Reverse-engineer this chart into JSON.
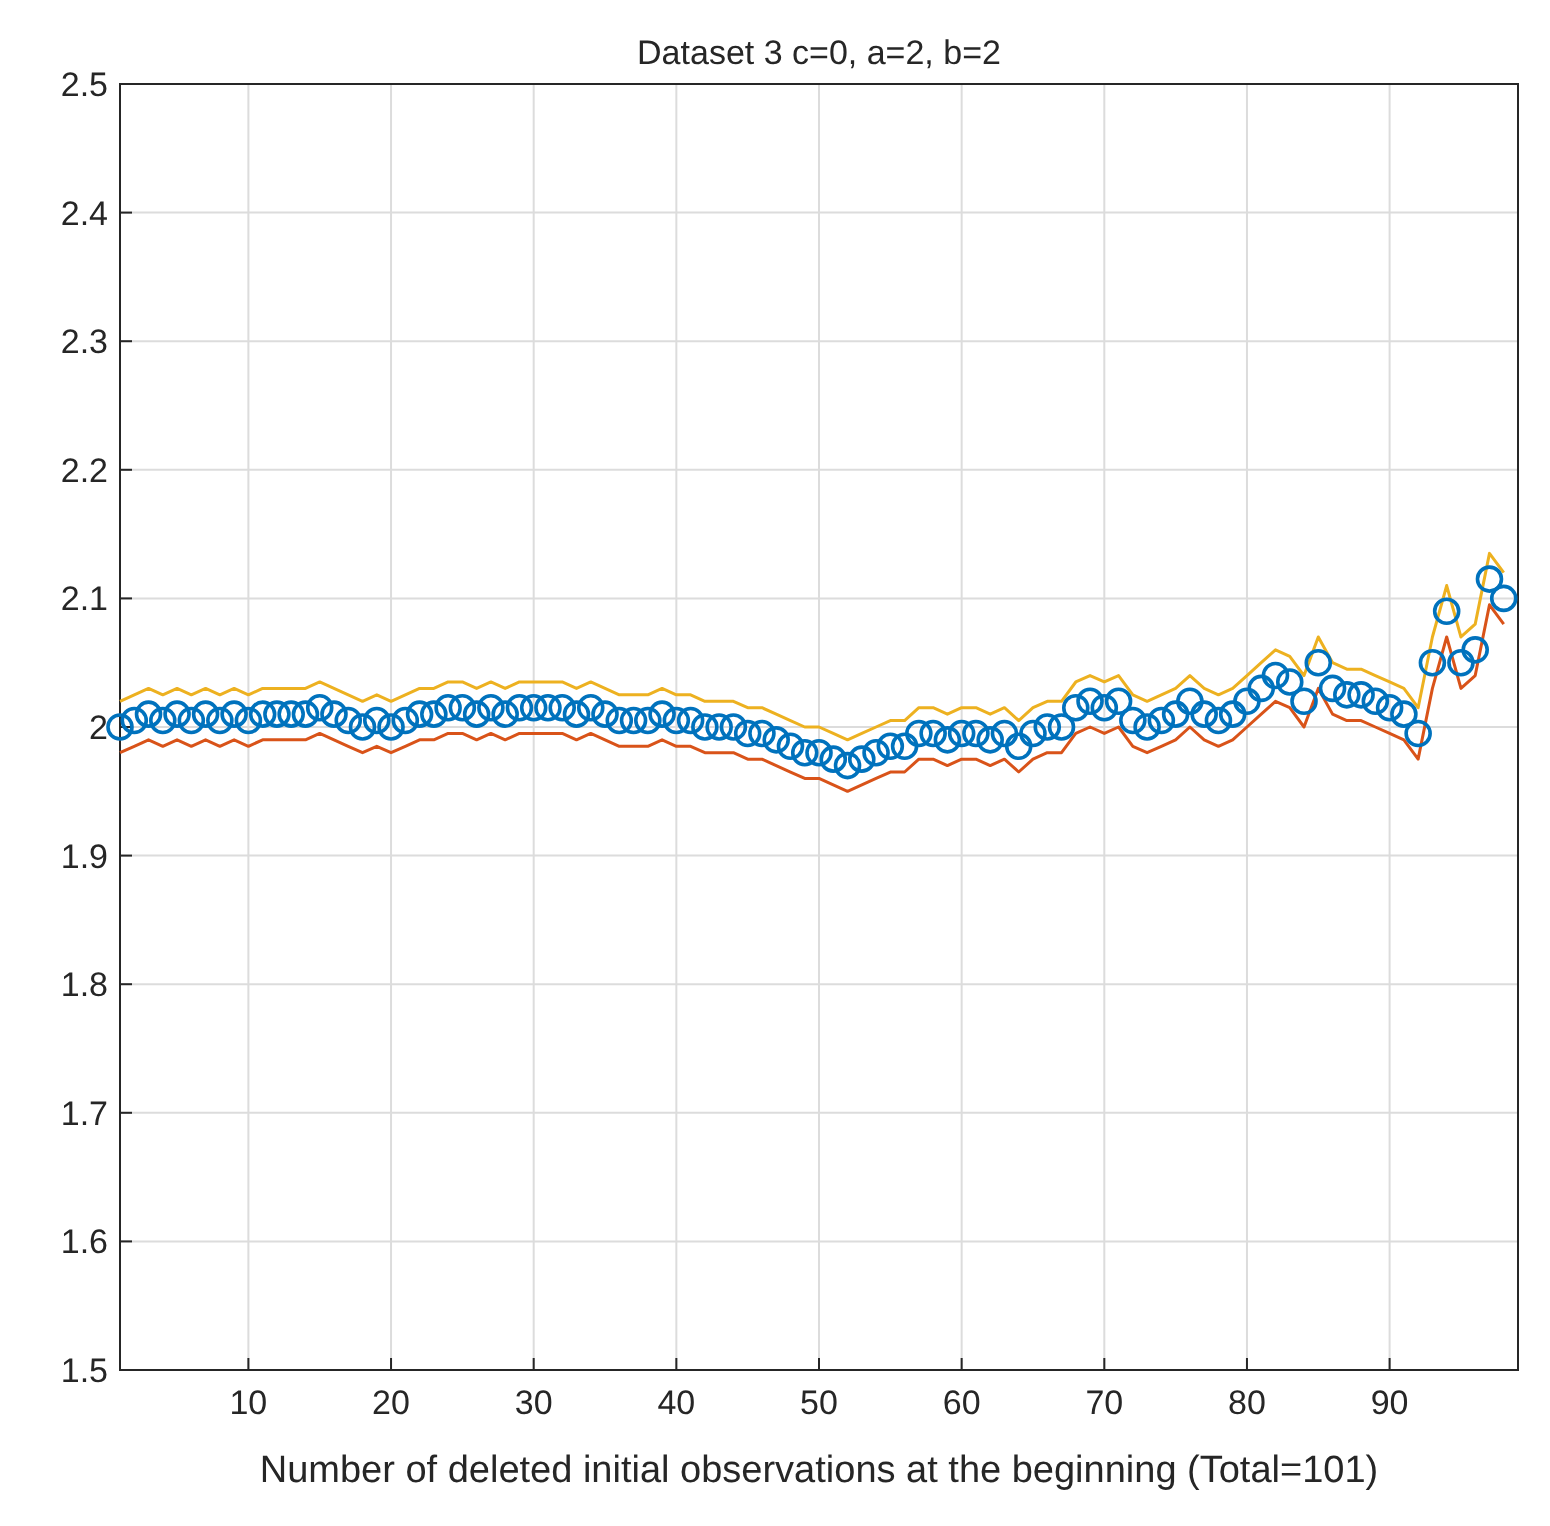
{
  "chart_data": {
    "type": "scatter",
    "title": "Dataset 3 c=0, a=2, b=2",
    "xlabel": "Number of deleted initial observations at the beginning (Total=101)",
    "x": [
      1,
      2,
      3,
      4,
      5,
      6,
      7,
      8,
      9,
      10,
      11,
      12,
      13,
      14,
      15,
      16,
      17,
      18,
      19,
      20,
      21,
      22,
      23,
      24,
      25,
      26,
      27,
      28,
      29,
      30,
      31,
      32,
      33,
      34,
      35,
      36,
      37,
      38,
      39,
      40,
      41,
      42,
      43,
      44,
      45,
      46,
      47,
      48,
      49,
      50,
      51,
      52,
      53,
      54,
      55,
      56,
      57,
      58,
      59,
      60,
      61,
      62,
      63,
      64,
      65,
      66,
      67,
      68,
      69,
      70,
      71,
      72,
      73,
      74,
      75,
      76,
      77,
      78,
      79,
      80,
      81,
      82,
      83,
      84,
      85,
      86,
      87,
      88,
      89,
      90,
      91,
      92,
      93,
      94,
      95,
      96,
      97,
      98
    ],
    "series": [
      {
        "type": "line",
        "color": "#edb120",
        "marker": "none",
        "values": [
          2.02,
          2.025,
          2.03,
          2.025,
          2.03,
          2.025,
          2.03,
          2.025,
          2.03,
          2.025,
          2.03,
          2.03,
          2.03,
          2.03,
          2.035,
          2.03,
          2.025,
          2.02,
          2.025,
          2.02,
          2.025,
          2.03,
          2.03,
          2.035,
          2.035,
          2.03,
          2.035,
          2.03,
          2.035,
          2.035,
          2.035,
          2.035,
          2.03,
          2.035,
          2.03,
          2.025,
          2.025,
          2.025,
          2.03,
          2.025,
          2.025,
          2.02,
          2.02,
          2.02,
          2.015,
          2.015,
          2.01,
          2.005,
          2,
          2,
          1.995,
          1.99,
          1.995,
          2,
          2.005,
          2.005,
          2.015,
          2.015,
          2.01,
          2.015,
          2.015,
          2.01,
          2.015,
          2.005,
          2.015,
          2.02,
          2.02,
          2.035,
          2.04,
          2.035,
          2.04,
          2.025,
          2.02,
          2.025,
          2.03,
          2.04,
          2.03,
          2.025,
          2.03,
          2.04,
          2.05,
          2.06,
          2.055,
          2.04,
          2.07,
          2.05,
          2.045,
          2.045,
          2.04,
          2.035,
          2.03,
          2.015,
          2.07,
          2.11,
          2.07,
          2.08,
          2.135,
          2.12
        ]
      },
      {
        "type": "line",
        "color": "#d95319",
        "marker": "none",
        "values": [
          1.98,
          1.985,
          1.99,
          1.985,
          1.99,
          1.985,
          1.99,
          1.985,
          1.99,
          1.985,
          1.99,
          1.99,
          1.99,
          1.99,
          1.995,
          1.99,
          1.985,
          1.98,
          1.985,
          1.98,
          1.985,
          1.99,
          1.99,
          1.995,
          1.995,
          1.99,
          1.995,
          1.99,
          1.995,
          1.995,
          1.995,
          1.995,
          1.99,
          1.995,
          1.99,
          1.985,
          1.985,
          1.985,
          1.99,
          1.985,
          1.985,
          1.98,
          1.98,
          1.98,
          1.975,
          1.975,
          1.97,
          1.965,
          1.96,
          1.96,
          1.955,
          1.95,
          1.955,
          1.96,
          1.965,
          1.965,
          1.975,
          1.975,
          1.97,
          1.975,
          1.975,
          1.97,
          1.975,
          1.965,
          1.975,
          1.98,
          1.98,
          1.995,
          2,
          1.995,
          2,
          1.985,
          1.98,
          1.985,
          1.99,
          2,
          1.99,
          1.985,
          1.99,
          2,
          2.01,
          2.02,
          2.015,
          2,
          2.03,
          2.01,
          2.005,
          2.005,
          2,
          1.995,
          1.99,
          1.975,
          2.03,
          2.07,
          2.03,
          2.04,
          2.095,
          2.08
        ]
      },
      {
        "color": "#0072bd",
        "marker": "circle",
        "values": [
          2,
          2.005,
          2.01,
          2.005,
          2.01,
          2.005,
          2.01,
          2.005,
          2.01,
          2.005,
          2.01,
          2.01,
          2.01,
          2.01,
          2.015,
          2.01,
          2.005,
          2,
          2.005,
          2,
          2.005,
          2.01,
          2.01,
          2.015,
          2.015,
          2.01,
          2.015,
          2.01,
          2.015,
          2.015,
          2.015,
          2.015,
          2.01,
          2.015,
          2.01,
          2.005,
          2.005,
          2.005,
          2.01,
          2.005,
          2.005,
          2,
          2,
          2,
          1.995,
          1.995,
          1.99,
          1.985,
          1.98,
          1.98,
          1.975,
          1.97,
          1.975,
          1.98,
          1.985,
          1.985,
          1.995,
          1.995,
          1.99,
          1.995,
          1.995,
          1.99,
          1.995,
          1.985,
          1.995,
          2,
          2,
          2.015,
          2.02,
          2.015,
          2.02,
          2.005,
          2,
          2.005,
          2.01,
          2.02,
          2.01,
          2.005,
          2.01,
          2.02,
          2.03,
          2.04,
          2.035,
          2.02,
          2.05,
          2.03,
          2.025,
          2.025,
          2.02,
          2.015,
          2.01,
          1.995,
          2.05,
          2.09,
          2.05,
          2.06,
          2.115,
          2.1
        ]
      }
    ],
    "xlim": [
      1,
      99
    ],
    "xticks": [
      10,
      20,
      30,
      40,
      50,
      60,
      70,
      80,
      90
    ],
    "ylim": [
      1.5,
      2.5
    ],
    "yticks": [
      1.5,
      1.6,
      1.7,
      1.8,
      1.9,
      2,
      2.1,
      2.2,
      2.3,
      2.4,
      2.5
    ],
    "grid": true
  }
}
